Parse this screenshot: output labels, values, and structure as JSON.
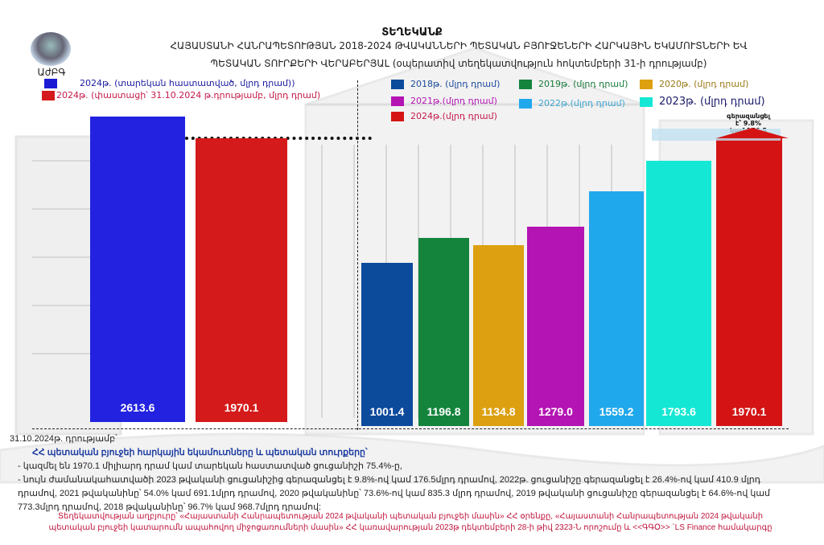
{
  "header": {
    "title": "ՏԵՂԵԿԱՆՔ",
    "subtitle_line1": "ՀԱՅԱՍՏԱՆԻ ՀԱՆՐԱՊԵՏՈՒԹՅԱՆ 2018-2024 ԹՎԱԿԱՆՆԵՐԻ ՊԵՏԱԿԱՆ ԲՅՈՒՋԵՆԵՐԻ ՀԱՐԿԱՅԻՆ ԵԿԱՄՈՒՏՆԵՐԻ ԵՎ",
    "subtitle_line2": "ՊԵՏԱԿԱՆ ՏՈՒՐՔԵՐԻ ՎԵՐԱԲԵՐՅԱԼ (օպերատիվ տեղեկատվություն հոկտեմբերի 31-ի դրությամբ)",
    "logo_text": "ԱժԲԳ"
  },
  "chart_data": [
    {
      "type": "bar",
      "legend_position": "top-left",
      "categories": [
        "2024թ. (տարեկան հաստատված, մլրդ դրամ))",
        "2024թ. (փաստացի՝ 31.10.2024 թ.դրությամբ, մլրդ դրամ)"
      ],
      "values": [
        2613.6,
        1970.1
      ],
      "value_labels": [
        "2613.6",
        "1970.1"
      ],
      "colors": [
        "#2222e0",
        "#d41a1a"
      ],
      "legend_colors": [
        "#1a1ad4",
        "#d41a1a"
      ],
      "legend_text_colors": [
        "#1a1aa0",
        "#c41a4a"
      ]
    },
    {
      "type": "bar",
      "legend_position": "top",
      "categories": [
        "2018թ. (մլրդ դրամ)",
        "2019թ. (մլրդ դրամ)",
        "2020թ. (մլրդ դրամ)",
        "2021թ.(մլրդ դրամ)",
        "2022թ.(մլրդ դրամ)",
        "2023թ. (մլրդ դրամ)",
        "2024թ.(մլրդ դրամ)"
      ],
      "values": [
        1001.4,
        1196.8,
        1134.8,
        1279.0,
        1559.2,
        1793.6,
        1970.1
      ],
      "value_labels": [
        "1001.4",
        "1196.8",
        "1134.8",
        "1279.0",
        "1559.2",
        "1793.6",
        "1970.1"
      ],
      "colors": [
        "#0c4a9c",
        "#14843c",
        "#dca010",
        "#b414b4",
        "#20a8ec",
        "#14e8d4",
        "#d41414"
      ],
      "legend_text_colors": [
        "#1a4a9c",
        "#1a7a3c",
        "#9a7a1a",
        "#b414b4",
        "#40a8d4",
        "#1a1a6a",
        "#c41a4a"
      ],
      "annotation": [
        "գերազանցել",
        "է՝ 9.8%",
        "կամ 176.5"
      ]
    }
  ],
  "notes": {
    "date_line": "31.10.2024թ. դրությամբ՝",
    "heading": "ՀՀ պետական բյուջեի հարկային եկամուտները և պետական տուրքերը՝",
    "bullet1": "-  կազմել են 1970.1 միլիարդ  դրամ  կամ տարեկան հաստատված ցուցանիշի 75.4%-ը,",
    "bullet2": "-  նույն ժամանակահատվածի 2023 թվականի ցուցանիշից գերազանցել է 9.8%-ով  կամ 176.5մլրդ դրամով, 2022թ. ցուցանիշը գերազանցել  է 26.4%-ով կամ 410.9 մլրդ դրամով,    2021 թվականինը՝  54.0% կամ 691.1մլրդ դրամով, 2020 թվականինը՝ 73.6%-ով  կամ 835.3 մլրդ դրամով, 2019 թվականի ցուցանիշը գերազանցել է 64.6%-ով  կամ  773.3մլրդ դրամով,  2018 թվականինը՝ 96.7% կամ  968.7մլրդ դրամով:"
  },
  "source": {
    "line1": "Տեղեկատվության աղբյուրը՝ «Հայաստանի Հանրապետության 2024 թվականի պետական բյուջեի մասին» ՀՀ օրենքը, «Հայաստանի Հանրապետության 2024 թվականի",
    "line2": "պետական բյուջեի կատարումն ապահովող միջոցառումների մասին» ՀՀ կառավարության 2023թ դեկտեմբերի 28-ի թիվ 2323-Ն որոշումը և <<ԳԳՕ>> `LS Finance համակարգը"
  }
}
